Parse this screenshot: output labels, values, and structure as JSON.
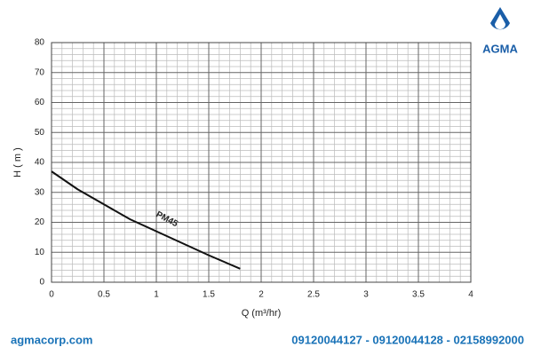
{
  "chart_data": {
    "type": "line",
    "x_label": "Q (m³/hr)",
    "y_label": "H ( m )",
    "x": [
      0,
      0.25,
      0.5,
      0.75,
      1,
      1.25,
      1.5,
      1.8
    ],
    "series": [
      {
        "name": "PM45",
        "color": "#111111",
        "values": [
          37,
          31,
          26,
          21,
          17,
          13,
          9,
          4.5
        ]
      }
    ],
    "xlim": [
      0,
      4
    ],
    "xticks": [
      0,
      0.5,
      1,
      1.5,
      2,
      2.5,
      3,
      3.5,
      4
    ],
    "ylim": [
      0,
      80
    ],
    "yticks": [
      0,
      10,
      20,
      30,
      40,
      50,
      60,
      70,
      80
    ],
    "grid": true,
    "minor_grid_divisions": 5
  },
  "brand": "AGMA",
  "website": "agmacorp.com",
  "phones": "09120044127 - 09120044128 - 02158992000"
}
